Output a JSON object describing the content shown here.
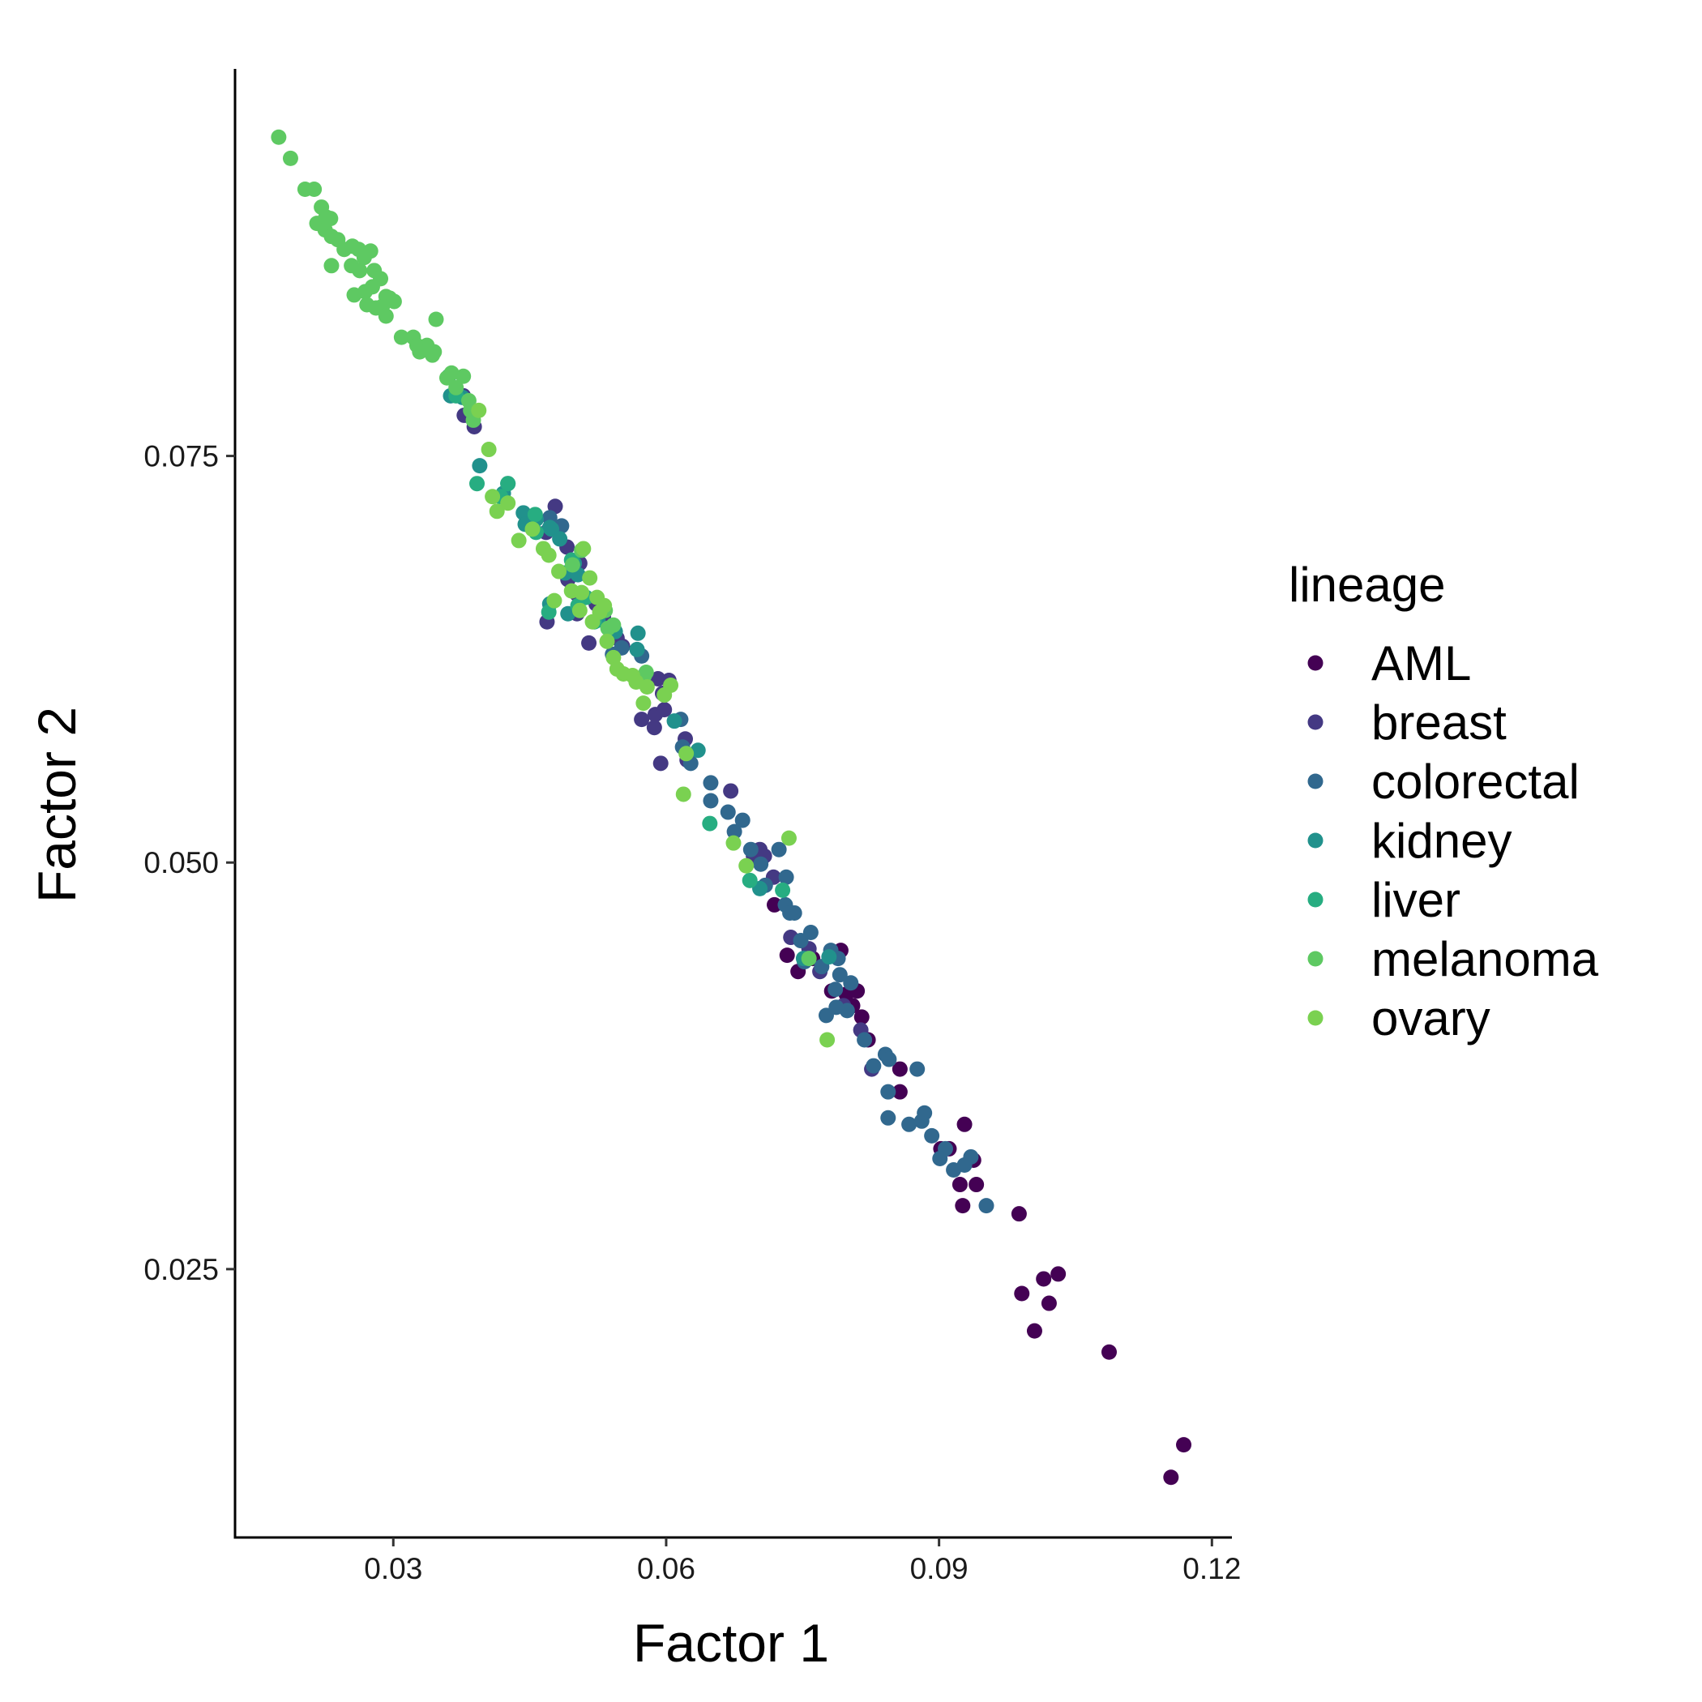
{
  "chart_data": {
    "type": "scatter",
    "xlabel": "Factor 1",
    "ylabel": "Factor 2",
    "xlim": [
      0.0126,
      0.1222
    ],
    "ylim": [
      0.0085,
      0.0988
    ],
    "xticks": [
      0.03,
      0.06,
      0.09,
      0.12
    ],
    "xtick_labels": [
      "0.03",
      "0.06",
      "0.09",
      "0.12"
    ],
    "yticks": [
      0.025,
      0.05,
      0.075
    ],
    "ytick_labels": [
      "0.025",
      "0.050",
      "0.075"
    ],
    "grid": false,
    "legend_title": "lineage",
    "legend_position": "right",
    "series": [
      {
        "name": "AML",
        "color": "#440154",
        "points": [
          [
            0.0733,
            0.0443
          ],
          [
            0.0745,
            0.0433
          ],
          [
            0.0798,
            0.0419
          ],
          [
            0.0805,
            0.0412
          ],
          [
            0.081,
            0.0421
          ],
          [
            0.0815,
            0.0405
          ],
          [
            0.0822,
            0.0391
          ],
          [
            0.0857,
            0.0373
          ],
          [
            0.0857,
            0.0359
          ],
          [
            0.0902,
            0.0324
          ],
          [
            0.0911,
            0.0324
          ],
          [
            0.0928,
            0.0339
          ],
          [
            0.0938,
            0.0317
          ],
          [
            0.0941,
            0.0302
          ],
          [
            0.0923,
            0.0302
          ],
          [
            0.0926,
            0.0289
          ],
          [
            0.0988,
            0.0284
          ],
          [
            0.1031,
            0.0247
          ],
          [
            0.1015,
            0.0244
          ],
          [
            0.0991,
            0.0235
          ],
          [
            0.1021,
            0.0229
          ],
          [
            0.1005,
            0.0212
          ],
          [
            0.1087,
            0.0199
          ],
          [
            0.1169,
            0.0142
          ],
          [
            0.1155,
            0.0122
          ],
          [
            0.0761,
            0.0441
          ],
          [
            0.0782,
            0.0421
          ],
          [
            0.0719,
            0.0474
          ],
          [
            0.0792,
            0.0446
          ]
        ]
      },
      {
        "name": "breast",
        "color": "#443983",
        "points": [
          [
            0.0377,
            0.0787
          ],
          [
            0.0378,
            0.0775
          ],
          [
            0.0389,
            0.0768
          ],
          [
            0.0478,
            0.0719
          ],
          [
            0.0468,
            0.0703
          ],
          [
            0.0491,
            0.0694
          ],
          [
            0.0505,
            0.0684
          ],
          [
            0.0492,
            0.0674
          ],
          [
            0.0502,
            0.0665
          ],
          [
            0.0469,
            0.0648
          ],
          [
            0.0502,
            0.0653
          ],
          [
            0.0523,
            0.0659
          ],
          [
            0.0531,
            0.0651
          ],
          [
            0.0515,
            0.0635
          ],
          [
            0.0591,
            0.0613
          ],
          [
            0.0603,
            0.0612
          ],
          [
            0.0596,
            0.0604
          ],
          [
            0.0588,
            0.0591
          ],
          [
            0.0598,
            0.0594
          ],
          [
            0.0573,
            0.0588
          ],
          [
            0.0587,
            0.0583
          ],
          [
            0.0621,
            0.0576
          ],
          [
            0.0623,
            0.0563
          ],
          [
            0.0594,
            0.0561
          ],
          [
            0.0671,
            0.0544
          ],
          [
            0.0696,
            0.0504
          ],
          [
            0.0703,
            0.0508
          ],
          [
            0.0708,
            0.0504
          ],
          [
            0.0718,
            0.0491
          ],
          [
            0.0737,
            0.0454
          ],
          [
            0.0757,
            0.0447
          ],
          [
            0.0769,
            0.0433
          ],
          [
            0.0795,
            0.0412
          ],
          [
            0.0814,
            0.0397
          ],
          [
            0.0826,
            0.0373
          ],
          [
            0.0546,
            0.0638
          ],
          [
            0.0552,
            0.0633
          ]
        ]
      },
      {
        "name": "colorectal",
        "color": "#31688e",
        "points": [
          [
            0.0472,
            0.0712
          ],
          [
            0.0485,
            0.0707
          ],
          [
            0.0541,
            0.0628
          ],
          [
            0.0551,
            0.0632
          ],
          [
            0.0573,
            0.0627
          ],
          [
            0.0616,
            0.0588
          ],
          [
            0.0618,
            0.0571
          ],
          [
            0.0627,
            0.0561
          ],
          [
            0.0649,
            0.0549
          ],
          [
            0.0649,
            0.0538
          ],
          [
            0.0668,
            0.0531
          ],
          [
            0.0684,
            0.0526
          ],
          [
            0.0675,
            0.0519
          ],
          [
            0.0693,
            0.0508
          ],
          [
            0.0704,
            0.0499
          ],
          [
            0.0709,
            0.0486
          ],
          [
            0.0724,
            0.0508
          ],
          [
            0.0732,
            0.0491
          ],
          [
            0.0731,
            0.0474
          ],
          [
            0.0736,
            0.0469
          ],
          [
            0.0741,
            0.0469
          ],
          [
            0.0748,
            0.0452
          ],
          [
            0.0752,
            0.0439
          ],
          [
            0.0759,
            0.0457
          ],
          [
            0.0771,
            0.0436
          ],
          [
            0.0781,
            0.0446
          ],
          [
            0.0789,
            0.0441
          ],
          [
            0.0791,
            0.0431
          ],
          [
            0.0786,
            0.0422
          ],
          [
            0.0799,
            0.0409
          ],
          [
            0.0776,
            0.0406
          ],
          [
            0.0787,
            0.0411
          ],
          [
            0.0803,
            0.0426
          ],
          [
            0.0818,
            0.0391
          ],
          [
            0.0828,
            0.0375
          ],
          [
            0.0841,
            0.0382
          ],
          [
            0.0845,
            0.0379
          ],
          [
            0.0844,
            0.0359
          ],
          [
            0.0876,
            0.0373
          ],
          [
            0.0844,
            0.0343
          ],
          [
            0.0867,
            0.0339
          ],
          [
            0.0881,
            0.0341
          ],
          [
            0.0884,
            0.0346
          ],
          [
            0.0892,
            0.0332
          ],
          [
            0.0907,
            0.0324
          ],
          [
            0.0901,
            0.0318
          ],
          [
            0.0916,
            0.0311
          ],
          [
            0.0928,
            0.0314
          ],
          [
            0.0935,
            0.0319
          ],
          [
            0.0952,
            0.0289
          ]
        ]
      },
      {
        "name": "kidney",
        "color": "#21918c",
        "points": [
          [
            0.0338,
            0.0816
          ],
          [
            0.0361,
            0.0799
          ],
          [
            0.0363,
            0.0787
          ],
          [
            0.0376,
            0.0786
          ],
          [
            0.0395,
            0.0744
          ],
          [
            0.0426,
            0.0733
          ],
          [
            0.0421,
            0.0727
          ],
          [
            0.0443,
            0.0715
          ],
          [
            0.0457,
            0.0711
          ],
          [
            0.0474,
            0.0705
          ],
          [
            0.0483,
            0.0699
          ],
          [
            0.0472,
            0.0706
          ],
          [
            0.0499,
            0.0684
          ],
          [
            0.0489,
            0.0678
          ],
          [
            0.0472,
            0.0659
          ],
          [
            0.0492,
            0.0653
          ],
          [
            0.0525,
            0.0649
          ],
          [
            0.0543,
            0.0643
          ],
          [
            0.0569,
            0.0641
          ],
          [
            0.0568,
            0.0631
          ],
          [
            0.0609,
            0.0587
          ],
          [
            0.0635,
            0.0569
          ],
          [
            0.0703,
            0.0484
          ],
          [
            0.0751,
            0.0441
          ],
          [
            0.0779,
            0.0442
          ],
          [
            0.0445,
            0.0708
          ],
          [
            0.0544,
            0.0642
          ],
          [
            0.0503,
            0.0677
          ]
        ]
      },
      {
        "name": "liver",
        "color": "#27ad81",
        "points": [
          [
            0.0392,
            0.0733
          ],
          [
            0.0426,
            0.0733
          ],
          [
            0.0457,
            0.0703
          ],
          [
            0.0471,
            0.0654
          ],
          [
            0.0503,
            0.0658
          ],
          [
            0.0521,
            0.0648
          ],
          [
            0.0648,
            0.0524
          ],
          [
            0.0692,
            0.0489
          ],
          [
            0.0728,
            0.0483
          ],
          [
            0.0369,
            0.0787
          ],
          [
            0.0418,
            0.0725
          ],
          [
            0.0456,
            0.0714
          ],
          [
            0.0496,
            0.0686
          ],
          [
            0.0512,
            0.0663
          ]
        ]
      },
      {
        "name": "melanoma",
        "color": "#5ec962",
        "points": [
          [
            0.0174,
            0.0946
          ],
          [
            0.0187,
            0.0933
          ],
          [
            0.0203,
            0.0914
          ],
          [
            0.0213,
            0.0914
          ],
          [
            0.0216,
            0.0893
          ],
          [
            0.0221,
            0.0903
          ],
          [
            0.0226,
            0.0897
          ],
          [
            0.0231,
            0.0896
          ],
          [
            0.0225,
            0.0889
          ],
          [
            0.0232,
            0.0885
          ],
          [
            0.0239,
            0.0883
          ],
          [
            0.0246,
            0.0877
          ],
          [
            0.0255,
            0.0879
          ],
          [
            0.0262,
            0.0877
          ],
          [
            0.0268,
            0.0872
          ],
          [
            0.0275,
            0.0876
          ],
          [
            0.0254,
            0.0867
          ],
          [
            0.0232,
            0.0867
          ],
          [
            0.0263,
            0.0864
          ],
          [
            0.0279,
            0.0864
          ],
          [
            0.0286,
            0.0859
          ],
          [
            0.0277,
            0.0854
          ],
          [
            0.0269,
            0.0851
          ],
          [
            0.0257,
            0.0849
          ],
          [
            0.0292,
            0.0848
          ],
          [
            0.0296,
            0.0847
          ],
          [
            0.0271,
            0.0843
          ],
          [
            0.0288,
            0.0842
          ],
          [
            0.0281,
            0.0841
          ],
          [
            0.0301,
            0.0845
          ],
          [
            0.0292,
            0.0836
          ],
          [
            0.0309,
            0.0823
          ],
          [
            0.0322,
            0.0823
          ],
          [
            0.0326,
            0.0818
          ],
          [
            0.0337,
            0.0818
          ],
          [
            0.0343,
            0.0812
          ],
          [
            0.0347,
            0.0834
          ],
          [
            0.0345,
            0.0814
          ],
          [
            0.0329,
            0.0814
          ],
          [
            0.0364,
            0.0801
          ],
          [
            0.0359,
            0.0798
          ],
          [
            0.0377,
            0.0799
          ],
          [
            0.0369,
            0.0792
          ],
          [
            0.0383,
            0.0784
          ],
          [
            0.0385,
            0.0778
          ],
          [
            0.0388,
            0.0772
          ],
          [
            0.0497,
            0.0683
          ],
          [
            0.0507,
            0.0692
          ],
          [
            0.0533,
            0.0655
          ],
          [
            0.0542,
            0.0646
          ],
          [
            0.0578,
            0.0617
          ],
          [
            0.0576,
            0.0615
          ],
          [
            0.0536,
            0.0644
          ],
          [
            0.0757,
            0.0441
          ]
        ]
      },
      {
        "name": "ovary",
        "color": "#7ad151",
        "points": [
          [
            0.0394,
            0.0778
          ],
          [
            0.0405,
            0.0754
          ],
          [
            0.0409,
            0.0725
          ],
          [
            0.0414,
            0.0716
          ],
          [
            0.0426,
            0.0721
          ],
          [
            0.0438,
            0.0698
          ],
          [
            0.0453,
            0.0705
          ],
          [
            0.0465,
            0.0693
          ],
          [
            0.0471,
            0.0689
          ],
          [
            0.0482,
            0.0679
          ],
          [
            0.0477,
            0.0661
          ],
          [
            0.0496,
            0.0667
          ],
          [
            0.0509,
            0.0693
          ],
          [
            0.0516,
            0.0675
          ],
          [
            0.0524,
            0.0663
          ],
          [
            0.0532,
            0.0658
          ],
          [
            0.0527,
            0.0654
          ],
          [
            0.0505,
            0.0655
          ],
          [
            0.0519,
            0.0648
          ],
          [
            0.0535,
            0.0636
          ],
          [
            0.0542,
            0.0626
          ],
          [
            0.0546,
            0.0619
          ],
          [
            0.0553,
            0.0616
          ],
          [
            0.0563,
            0.0615
          ],
          [
            0.0567,
            0.0611
          ],
          [
            0.0579,
            0.0608
          ],
          [
            0.0605,
            0.0609
          ],
          [
            0.0598,
            0.0603
          ],
          [
            0.0575,
            0.0598
          ],
          [
            0.0622,
            0.0567
          ],
          [
            0.0619,
            0.0542
          ],
          [
            0.0674,
            0.0512
          ],
          [
            0.0688,
            0.0498
          ],
          [
            0.0735,
            0.0515
          ],
          [
            0.0777,
            0.0391
          ],
          [
            0.0507,
            0.0666
          ]
        ]
      }
    ]
  }
}
